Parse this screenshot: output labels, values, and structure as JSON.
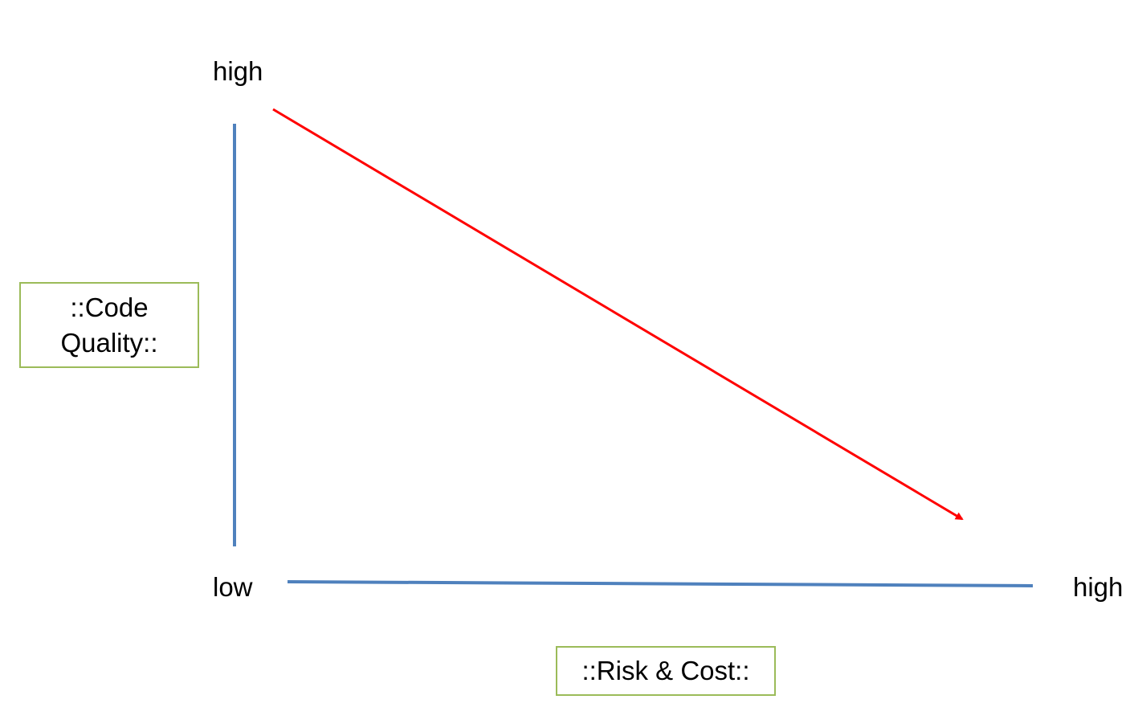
{
  "diagram": {
    "y_axis": {
      "title": "::Code Quality::",
      "high_label": "high"
    },
    "x_axis": {
      "title": "::Risk & Cost::",
      "low_label": "low",
      "high_label": "high"
    },
    "colors": {
      "axis": "#4f81bd",
      "trend_arrow": "#ff0000",
      "label_box_border": "#9bbb59"
    },
    "trend": {
      "direction": "decreasing",
      "from": "high quality, low risk & cost",
      "to": "low quality, high risk & cost"
    }
  }
}
